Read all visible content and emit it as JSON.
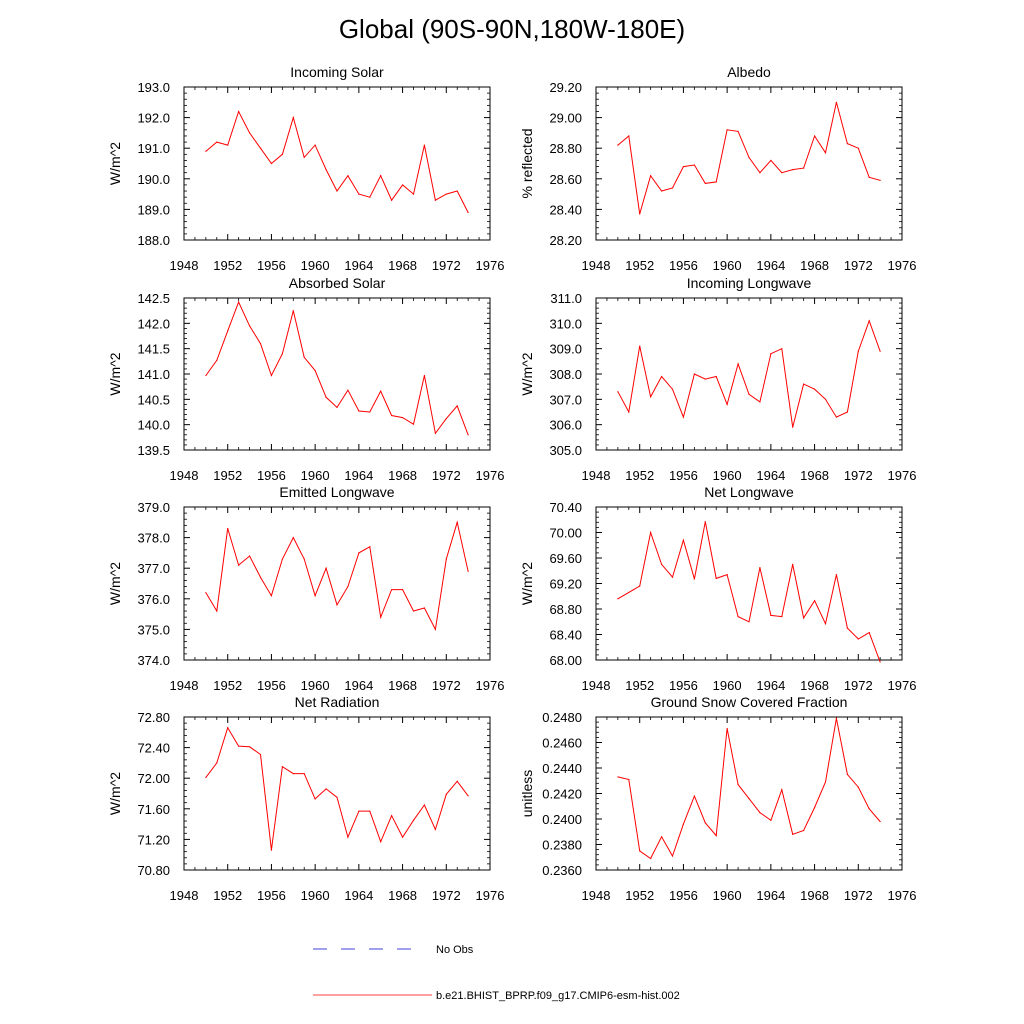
{
  "title": "Global (90S-90N,180W-180E)",
  "colors": {
    "model": "#ff0000",
    "obs": "#0000cc",
    "axis": "#000000"
  },
  "legend": {
    "obs_label": "No Obs",
    "model_label": "b.e21.BHIST_BPRP.f09_g17.CMIP6-esm-hist.002"
  },
  "chart_data": [
    {
      "type": "line",
      "title": "Incoming Solar",
      "xlabel": "",
      "ylabel": "W/m^2",
      "xlim": [
        1948,
        1976
      ],
      "ylim": [
        188.0,
        193.0
      ],
      "xticks": [
        1948,
        1952,
        1956,
        1960,
        1964,
        1968,
        1972,
        1976
      ],
      "yticks": [
        "188.0",
        "189.0",
        "190.0",
        "191.0",
        "192.0",
        "193.0"
      ],
      "x": [
        1950,
        1951,
        1952,
        1953,
        1954,
        1955,
        1956,
        1957,
        1958,
        1959,
        1960,
        1961,
        1962,
        1963,
        1964,
        1965,
        1966,
        1967,
        1968,
        1969,
        1970,
        1971,
        1972,
        1973,
        1974
      ],
      "series": [
        {
          "name": "b.e21.BHIST_BPRP.f09_g17.CMIP6-esm-hist.002",
          "values": [
            190.9,
            191.2,
            191.1,
            192.2,
            191.5,
            191.0,
            190.5,
            190.8,
            192.0,
            190.7,
            191.1,
            190.3,
            189.6,
            190.1,
            189.5,
            189.4,
            190.1,
            189.3,
            189.8,
            189.5,
            191.1,
            189.3,
            189.5,
            189.6,
            188.9
          ]
        }
      ]
    },
    {
      "type": "line",
      "title": "Albedo",
      "xlabel": "",
      "ylabel": "% reflected",
      "xlim": [
        1948,
        1976
      ],
      "ylim": [
        28.2,
        29.2
      ],
      "xticks": [
        1948,
        1952,
        1956,
        1960,
        1964,
        1968,
        1972,
        1976
      ],
      "yticks": [
        "28.20",
        "28.40",
        "28.60",
        "28.80",
        "29.00",
        "29.20"
      ],
      "x": [
        1950,
        1951,
        1952,
        1953,
        1954,
        1955,
        1956,
        1957,
        1958,
        1959,
        1960,
        1961,
        1962,
        1963,
        1964,
        1965,
        1966,
        1967,
        1968,
        1969,
        1970,
        1971,
        1972,
        1973,
        1974
      ],
      "series": [
        {
          "name": "b.e21.BHIST_BPRP.f09_g17.CMIP6-esm-hist.002",
          "values": [
            28.82,
            28.88,
            28.37,
            28.62,
            28.52,
            28.54,
            28.68,
            28.69,
            28.57,
            28.58,
            28.92,
            28.91,
            28.74,
            28.64,
            28.72,
            28.64,
            28.66,
            28.67,
            28.88,
            28.77,
            29.1,
            28.83,
            28.8,
            28.61,
            28.59
          ]
        }
      ]
    },
    {
      "type": "line",
      "title": "Absorbed Solar",
      "xlabel": "",
      "ylabel": "W/m^2",
      "xlim": [
        1948,
        1976
      ],
      "ylim": [
        139.5,
        142.5
      ],
      "xticks": [
        1948,
        1952,
        1956,
        1960,
        1964,
        1968,
        1972,
        1976
      ],
      "yticks": [
        "139.5",
        "140.0",
        "140.5",
        "141.0",
        "141.5",
        "142.0",
        "142.5"
      ],
      "x": [
        1950,
        1951,
        1952,
        1953,
        1954,
        1955,
        1956,
        1957,
        1958,
        1959,
        1960,
        1961,
        1962,
        1963,
        1964,
        1965,
        1966,
        1967,
        1968,
        1969,
        1970,
        1971,
        1972,
        1973,
        1974
      ],
      "series": [
        {
          "name": "b.e21.BHIST_BPRP.f09_g17.CMIP6-esm-hist.002",
          "values": [
            140.97,
            141.27,
            141.85,
            142.42,
            141.95,
            141.6,
            140.97,
            141.4,
            142.25,
            141.33,
            141.07,
            140.54,
            140.34,
            140.68,
            140.27,
            140.25,
            140.66,
            140.18,
            140.14,
            140.01,
            140.97,
            139.83,
            140.12,
            140.37,
            139.8
          ]
        }
      ]
    },
    {
      "type": "line",
      "title": "Incoming Longwave",
      "xlabel": "",
      "ylabel": "W/m^2",
      "xlim": [
        1948,
        1976
      ],
      "ylim": [
        305.0,
        311.0
      ],
      "xticks": [
        1948,
        1952,
        1956,
        1960,
        1964,
        1968,
        1972,
        1976
      ],
      "yticks": [
        "305.0",
        "306.0",
        "307.0",
        "308.0",
        "309.0",
        "310.0",
        "311.0"
      ],
      "x": [
        1950,
        1951,
        1952,
        1953,
        1954,
        1955,
        1956,
        1957,
        1958,
        1959,
        1960,
        1961,
        1962,
        1963,
        1964,
        1965,
        1966,
        1967,
        1968,
        1969,
        1970,
        1971,
        1972,
        1973,
        1974
      ],
      "series": [
        {
          "name": "b.e21.BHIST_BPRP.f09_g17.CMIP6-esm-hist.002",
          "values": [
            307.3,
            306.5,
            309.1,
            307.1,
            307.9,
            307.4,
            306.3,
            308.0,
            307.8,
            307.9,
            306.8,
            308.4,
            307.2,
            306.9,
            308.8,
            309.0,
            305.9,
            307.6,
            307.4,
            307.0,
            306.3,
            306.5,
            308.9,
            310.1,
            308.9
          ]
        }
      ]
    },
    {
      "type": "line",
      "title": "Emitted Longwave",
      "xlabel": "",
      "ylabel": "W/m^2",
      "xlim": [
        1948,
        1976
      ],
      "ylim": [
        374.0,
        379.0
      ],
      "xticks": [
        1948,
        1952,
        1956,
        1960,
        1964,
        1968,
        1972,
        1976
      ],
      "yticks": [
        "374.0",
        "375.0",
        "376.0",
        "377.0",
        "378.0",
        "379.0"
      ],
      "x": [
        1950,
        1951,
        1952,
        1953,
        1954,
        1955,
        1956,
        1957,
        1958,
        1959,
        1960,
        1961,
        1962,
        1963,
        1964,
        1965,
        1966,
        1967,
        1968,
        1969,
        1970,
        1971,
        1972,
        1973,
        1974
      ],
      "series": [
        {
          "name": "b.e21.BHIST_BPRP.f09_g17.CMIP6-esm-hist.002",
          "values": [
            376.2,
            375.6,
            378.3,
            377.1,
            377.4,
            376.7,
            376.1,
            377.3,
            378.0,
            377.3,
            376.1,
            377.0,
            375.8,
            376.4,
            377.5,
            377.7,
            375.4,
            376.3,
            376.3,
            375.6,
            375.7,
            375.0,
            377.3,
            378.5,
            376.9
          ]
        }
      ]
    },
    {
      "type": "line",
      "title": "Net Longwave",
      "xlabel": "",
      "ylabel": "W/m^2",
      "xlim": [
        1948,
        1976
      ],
      "ylim": [
        68.0,
        70.4
      ],
      "xticks": [
        1948,
        1952,
        1956,
        1960,
        1964,
        1968,
        1972,
        1976
      ],
      "yticks": [
        "68.00",
        "68.40",
        "68.80",
        "69.20",
        "69.60",
        "70.00",
        "70.40"
      ],
      "x": [
        1950,
        1951,
        1952,
        1953,
        1954,
        1955,
        1956,
        1957,
        1958,
        1959,
        1960,
        1961,
        1962,
        1963,
        1964,
        1965,
        1966,
        1967,
        1968,
        1969,
        1970,
        1971,
        1972,
        1973,
        1974
      ],
      "series": [
        {
          "name": "b.e21.BHIST_BPRP.f09_g17.CMIP6-esm-hist.002",
          "values": [
            68.96,
            69.06,
            69.16,
            70.0,
            69.5,
            69.3,
            69.88,
            69.27,
            70.17,
            69.28,
            69.34,
            68.68,
            68.6,
            69.45,
            68.7,
            68.68,
            69.5,
            68.66,
            68.93,
            68.57,
            69.34,
            68.5,
            68.33,
            68.43,
            67.97
          ]
        }
      ]
    },
    {
      "type": "line",
      "title": "Net Radiation",
      "xlabel": "",
      "ylabel": "W/m^2",
      "xlim": [
        1948,
        1976
      ],
      "ylim": [
        70.8,
        72.8
      ],
      "xticks": [
        1948,
        1952,
        1956,
        1960,
        1964,
        1968,
        1972,
        1976
      ],
      "yticks": [
        "70.80",
        "71.20",
        "71.60",
        "72.00",
        "72.40",
        "72.80"
      ],
      "x": [
        1950,
        1951,
        1952,
        1953,
        1954,
        1955,
        1956,
        1957,
        1958,
        1959,
        1960,
        1961,
        1962,
        1963,
        1964,
        1965,
        1966,
        1967,
        1968,
        1969,
        1970,
        1971,
        1972,
        1973,
        1974
      ],
      "series": [
        {
          "name": "b.e21.BHIST_BPRP.f09_g17.CMIP6-esm-hist.002",
          "values": [
            72.01,
            72.2,
            72.66,
            72.42,
            72.41,
            72.31,
            71.06,
            72.15,
            72.06,
            72.06,
            71.73,
            71.86,
            71.75,
            71.23,
            71.57,
            71.57,
            71.17,
            71.51,
            71.23,
            71.45,
            71.65,
            71.33,
            71.79,
            71.96,
            71.77
          ]
        }
      ]
    },
    {
      "type": "line",
      "title": "Ground Snow Covered Fraction",
      "xlabel": "",
      "ylabel": "unitless",
      "xlim": [
        1948,
        1976
      ],
      "ylim": [
        0.236,
        0.248
      ],
      "xticks": [
        1948,
        1952,
        1956,
        1960,
        1964,
        1968,
        1972,
        1976
      ],
      "yticks": [
        "0.2360",
        "0.2380",
        "0.2400",
        "0.2420",
        "0.2440",
        "0.2460",
        "0.2480"
      ],
      "x": [
        1950,
        1951,
        1952,
        1953,
        1954,
        1955,
        1956,
        1957,
        1958,
        1959,
        1960,
        1961,
        1962,
        1963,
        1964,
        1965,
        1966,
        1967,
        1968,
        1969,
        1970,
        1971,
        1972,
        1973,
        1974
      ],
      "series": [
        {
          "name": "b.e21.BHIST_BPRP.f09_g17.CMIP6-esm-hist.002",
          "values": [
            0.2433,
            0.2431,
            0.2375,
            0.2369,
            0.2386,
            0.2371,
            0.2396,
            0.2418,
            0.2397,
            0.2387,
            0.2471,
            0.2427,
            0.2416,
            0.2405,
            0.2399,
            0.2423,
            0.2388,
            0.2391,
            0.2409,
            0.2429,
            0.2479,
            0.2435,
            0.2425,
            0.2408,
            0.2398
          ]
        }
      ]
    }
  ]
}
